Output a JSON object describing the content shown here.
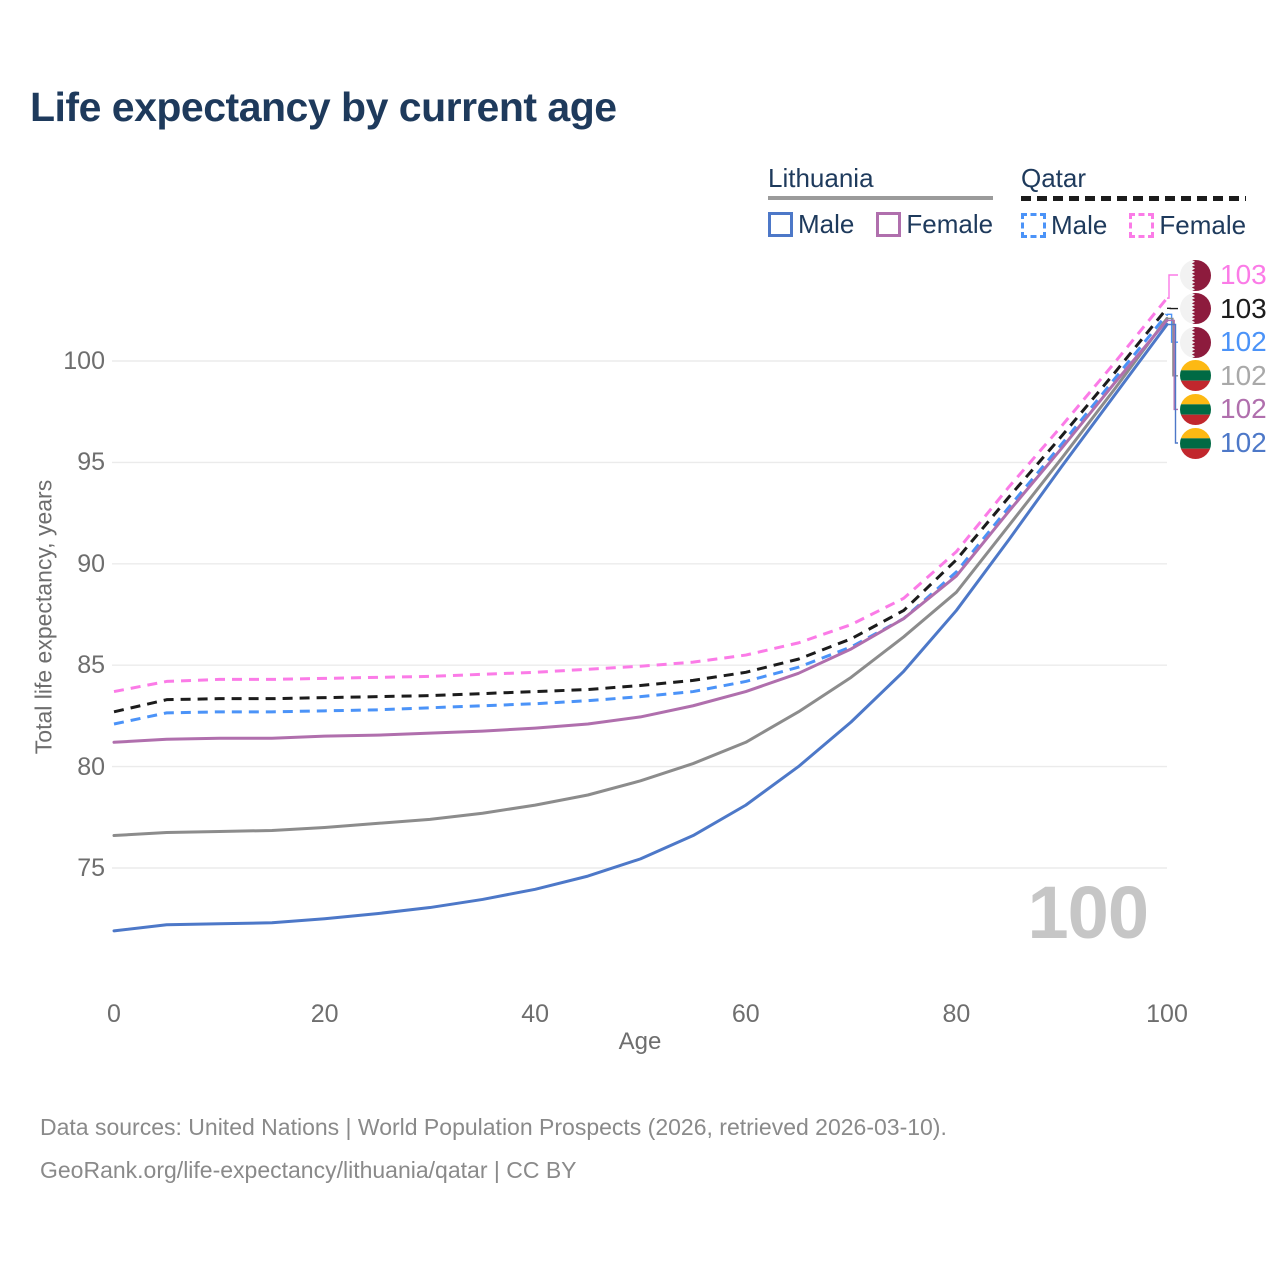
{
  "title": "Life expectancy by current age",
  "legend": {
    "lithuania": {
      "label": "Lithuania",
      "male": "Male",
      "female": "Female"
    },
    "qatar": {
      "label": "Qatar",
      "male": "Male",
      "female": "Female"
    }
  },
  "age_indicator": "100",
  "footer": {
    "line1": "Data sources: United Nations | World Population Prospects (2026, retrieved 2026-03-10).",
    "line2": "GeoRank.org/life-expectancy/lithuania/qatar | CC BY"
  },
  "colors": {
    "title_text": "#1e3a5c",
    "axis_text": "#6e6e6e",
    "gridline": "#ebebeb",
    "watermark": "#c6c6c6",
    "lithuania_male": "#4d78c8",
    "lithuania_female": "#b06fad",
    "lithuania_both": "#8c8c8c",
    "qatar_male": "#4b93f8",
    "qatar_female": "#fb7be7",
    "qatar_both": "#1c1c1c"
  },
  "chart_data": {
    "type": "line",
    "title": "Life expectancy by current age",
    "xlabel": "Age",
    "ylabel": "Total life expectancy, years",
    "x_ticks": [
      0,
      20,
      40,
      60,
      80,
      100
    ],
    "y_ticks": [
      75,
      80,
      85,
      90,
      95,
      100
    ],
    "xlim": [
      0,
      100
    ],
    "ylim": [
      71.5,
      104
    ],
    "grid": "horizontal",
    "legend_position": "top-right",
    "x": [
      0,
      5,
      10,
      15,
      20,
      25,
      30,
      35,
      40,
      45,
      50,
      55,
      60,
      65,
      70,
      75,
      80,
      85,
      90,
      95,
      100
    ],
    "series": [
      {
        "name": "Qatar Female",
        "country": "qatar",
        "sex": "female",
        "line_style": "dashed",
        "color": "#fb7be7",
        "end_label": "103",
        "values": [
          83.7,
          84.2,
          84.3,
          84.3,
          84.35,
          84.4,
          84.45,
          84.55,
          84.65,
          84.8,
          84.95,
          85.15,
          85.5,
          86.1,
          87.0,
          88.3,
          90.6,
          93.8,
          96.8,
          99.9,
          103.1
        ]
      },
      {
        "name": "Qatar",
        "country": "qatar",
        "sex": "both",
        "line_style": "dashed",
        "color": "#1c1c1c",
        "end_label": "103",
        "values": [
          82.7,
          83.3,
          83.35,
          83.35,
          83.4,
          83.45,
          83.5,
          83.6,
          83.7,
          83.8,
          84.0,
          84.25,
          84.65,
          85.3,
          86.3,
          87.7,
          90.2,
          93.3,
          96.3,
          99.4,
          102.6
        ]
      },
      {
        "name": "Qatar Male",
        "country": "qatar",
        "sex": "male",
        "line_style": "dashed",
        "color": "#4b93f8",
        "end_label": "102",
        "values": [
          82.1,
          82.65,
          82.7,
          82.7,
          82.75,
          82.8,
          82.9,
          83.0,
          83.1,
          83.25,
          83.45,
          83.7,
          84.2,
          84.9,
          85.9,
          87.3,
          89.6,
          92.8,
          95.9,
          99.1,
          102.3
        ]
      },
      {
        "name": "Lithuania",
        "country": "lithuania",
        "sex": "both",
        "line_style": "solid",
        "color": "#8c8c8c",
        "end_label": "102",
        "label_color": "#a9a9a9",
        "values": [
          76.6,
          76.75,
          76.8,
          76.85,
          77.0,
          77.2,
          77.4,
          77.7,
          78.1,
          78.6,
          79.3,
          80.15,
          81.2,
          82.7,
          84.4,
          86.4,
          88.6,
          91.9,
          95.2,
          98.6,
          102.1
        ]
      },
      {
        "name": "Lithuania Female",
        "country": "lithuania",
        "sex": "female",
        "line_style": "solid",
        "color": "#b06fad",
        "end_label": "102",
        "values": [
          81.2,
          81.35,
          81.4,
          81.4,
          81.5,
          81.55,
          81.65,
          81.75,
          81.9,
          82.1,
          82.45,
          83.0,
          83.7,
          84.6,
          85.8,
          87.3,
          89.4,
          92.6,
          95.7,
          98.9,
          102.0
        ]
      },
      {
        "name": "Lithuania Male",
        "country": "lithuania",
        "sex": "male",
        "line_style": "solid",
        "color": "#4d78c8",
        "end_label": "102",
        "values": [
          71.9,
          72.2,
          72.25,
          72.3,
          72.5,
          72.75,
          73.05,
          73.45,
          73.95,
          74.6,
          75.45,
          76.6,
          78.1,
          80.0,
          82.2,
          84.7,
          87.7,
          91.2,
          94.8,
          98.3,
          101.8
        ]
      }
    ]
  }
}
